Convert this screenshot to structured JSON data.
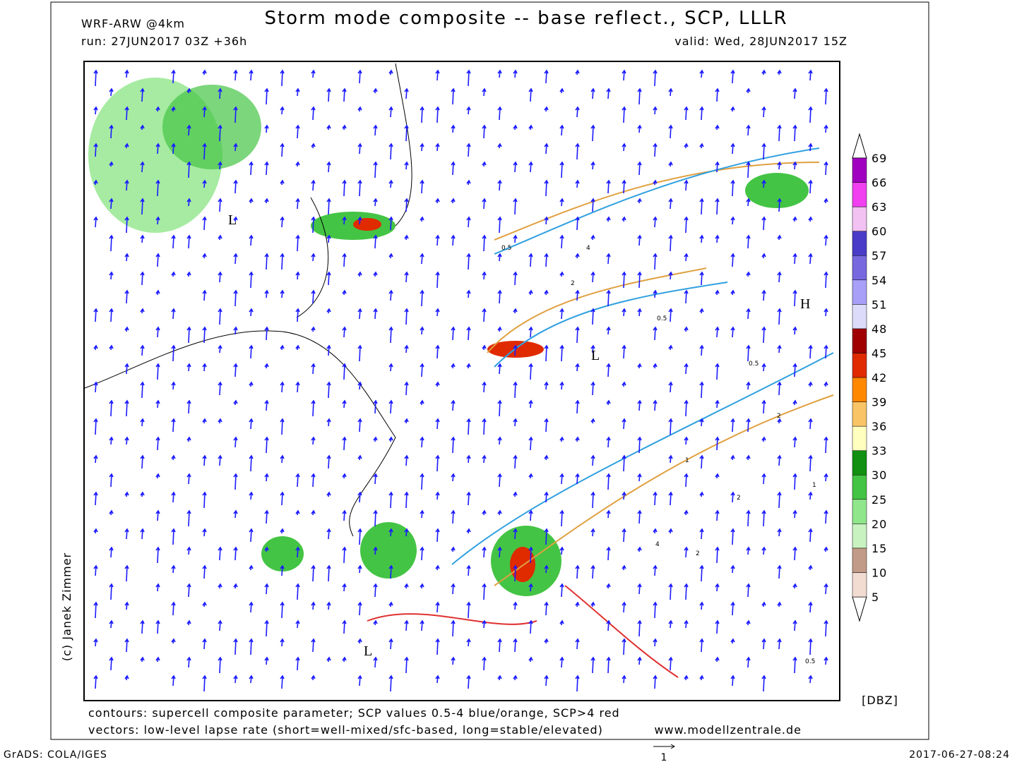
{
  "header": {
    "model": "WRF-ARW @4km",
    "title": "Storm mode composite -- base reflect., SCP, LLLR",
    "run": "run: 27JUN2017 03Z +36h",
    "valid": "valid: Wed, 28JUN2017 15Z"
  },
  "map": {
    "pressure_centers": [
      "L",
      "L",
      "L",
      "H"
    ],
    "contour_labels": [
      "0.5",
      "2",
      "4",
      "0.5",
      "1",
      "2",
      "0.5",
      "4",
      "2",
      "1",
      "0.5",
      "2"
    ]
  },
  "colorbar": {
    "unit": "[DBZ]",
    "levels": [
      5,
      10,
      15,
      20,
      25,
      30,
      33,
      36,
      39,
      42,
      45,
      48,
      51,
      54,
      57,
      60,
      63,
      66,
      69
    ],
    "colors": [
      "#f2dcd2",
      "#c29a88",
      "#c8f2c0",
      "#90e68a",
      "#44c444",
      "#119011",
      "#ffffc0",
      "#f8c466",
      "#ff8800",
      "#e02a00",
      "#a00000",
      "#dcdcfa",
      "#a8a0f8",
      "#7868e0",
      "#4a3cc8",
      "#f2c2f2",
      "#f040f0",
      "#a000c0"
    ]
  },
  "footer": {
    "contours": "contours: supercell composite parameter; SCP values 0.5-4 blue/orange, SCP>4 red",
    "vectors": "vectors: low-level lapse rate (short=well-mixed/sfc-based, long=stable/elevated)",
    "website": "www.modellzentrale.de",
    "credit": "(c) Janek Zimmer",
    "grads": "GrADS: COLA/IGES",
    "timestamp": "2017-06-27-08:24",
    "vector_scale": 1
  }
}
